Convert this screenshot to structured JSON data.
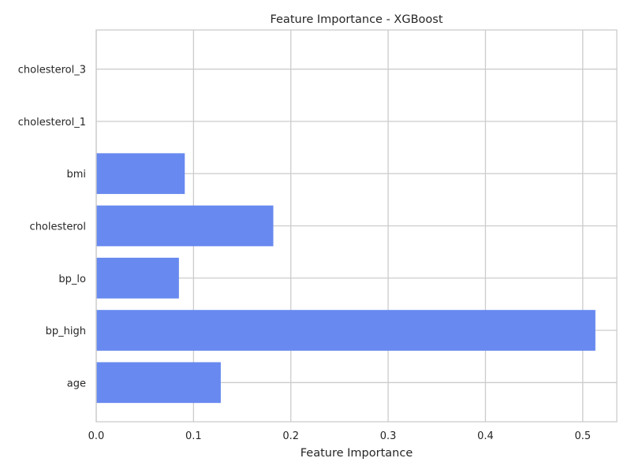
{
  "chart_data": {
    "type": "bar",
    "orientation": "horizontal",
    "title": "Feature Importance - XGBoost",
    "xlabel": "Feature Importance",
    "ylabel": "",
    "categories": [
      "age",
      "bp_high",
      "bp_lo",
      "cholesterol",
      "bmi",
      "cholesterol_1",
      "cholesterol_3"
    ],
    "values": [
      0.128,
      0.513,
      0.085,
      0.182,
      0.091,
      0.0,
      0.0
    ],
    "xlim": [
      0,
      0.535
    ],
    "xticks": [
      0.0,
      0.1,
      0.2,
      0.3,
      0.4,
      0.5
    ],
    "xtick_labels": [
      "0.0",
      "0.1",
      "0.2",
      "0.3",
      "0.4",
      "0.5"
    ],
    "grid": true,
    "bar_color": "#6889ef",
    "grid_color": "#cccccc",
    "frame_color": "#cccccc"
  }
}
